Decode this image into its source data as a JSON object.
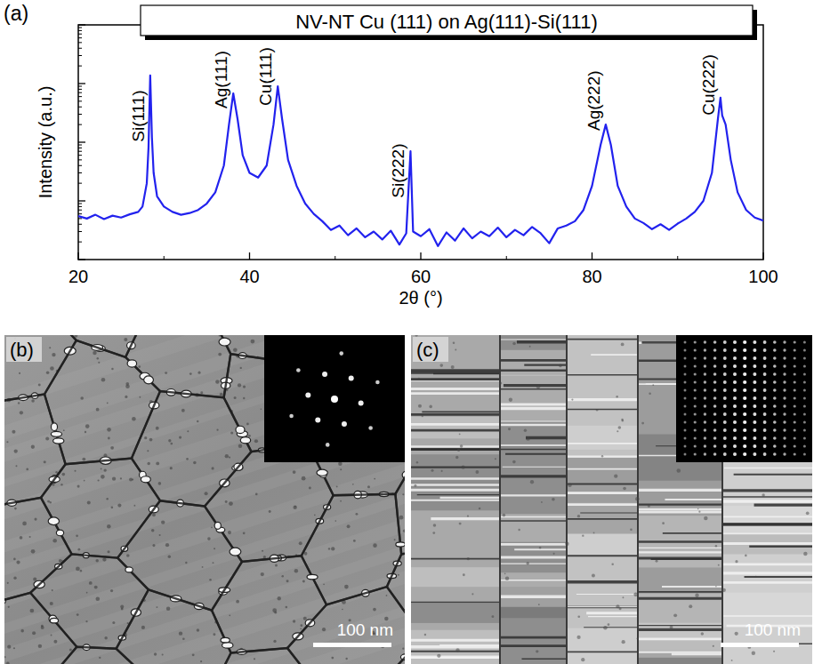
{
  "chart_data": {
    "type": "line",
    "panel_label": "(a)",
    "title": "NV-NT Cu (111) on Ag(111)-Si(111)",
    "x_label": "2θ (°)",
    "y_label": "Intensity (a.u.)",
    "log": "y",
    "xlim": [
      20,
      100
    ],
    "xticks": [
      20,
      40,
      60,
      80,
      100
    ],
    "ylim": [
      1,
      10000
    ],
    "yticks": [
      1,
      10,
      100,
      1000,
      10000
    ],
    "tick_labels": "x",
    "color": "#2222ee",
    "x": [
      20,
      21,
      22,
      23,
      24,
      25,
      26,
      27,
      27.5,
      28,
      28.2,
      28.4,
      28.6,
      28.8,
      29.2,
      30,
      31,
      32,
      33,
      34,
      35,
      36,
      37,
      37.6,
      38.1,
      38.6,
      39.2,
      40,
      41,
      42,
      42.8,
      43.3,
      43.8,
      44.5,
      45.5,
      46.5,
      47.5,
      48.5,
      49.5,
      50.5,
      51.5,
      52.5,
      53.5,
      54.5,
      55.5,
      56.5,
      57.5,
      58.3,
      58.8,
      59.1,
      60,
      61,
      62,
      63,
      64,
      65,
      66,
      67,
      68,
      69,
      70,
      71,
      72,
      73,
      74,
      75,
      76,
      77,
      78,
      79,
      80,
      81,
      81.6,
      82.2,
      83,
      84,
      85,
      86,
      87,
      88,
      89,
      90,
      91,
      92,
      93,
      94,
      94.7,
      95,
      95.2,
      95.6,
      96.2,
      97,
      98,
      99,
      100
    ],
    "values": [
      5.5,
      5.0,
      5.8,
      4.9,
      5.6,
      5.2,
      5.9,
      6.5,
      8,
      20,
      80,
      1380,
      120,
      30,
      12,
      8,
      6.5,
      5.8,
      6.2,
      7,
      9,
      14,
      40,
      200,
      680,
      250,
      60,
      30,
      25,
      40,
      200,
      900,
      250,
      50,
      18,
      9,
      6,
      4.5,
      3.2,
      3.8,
      2.6,
      3.4,
      2.4,
      3.0,
      2.2,
      3.1,
      1.8,
      2.8,
      70,
      3,
      2.5,
      3.3,
      1.7,
      2.9,
      2.1,
      3.4,
      2.3,
      3.0,
      2.5,
      3.5,
      2.4,
      3.2,
      2.6,
      3.6,
      2.8,
      1.9,
      3.4,
      3.8,
      4.5,
      7,
      18,
      90,
      200,
      90,
      18,
      8,
      5,
      4.2,
      3.3,
      4,
      3.2,
      4.1,
      5,
      6.5,
      10,
      30,
      250,
      575,
      285,
      200,
      50,
      14,
      7,
      5.2,
      4.6
    ],
    "annotations": [
      {
        "text": "Si(111)",
        "x": 28.4
      },
      {
        "text": "Ag(111)",
        "x": 38.1
      },
      {
        "text": "Cu(111)",
        "x": 43.3
      },
      {
        "text": "Si(222)",
        "x": 58.8
      },
      {
        "text": "Ag(222)",
        "x": 81.6
      },
      {
        "text": "Cu(222)",
        "x": 95
      }
    ]
  },
  "images": [
    {
      "label": "(b)",
      "scale_bar": "100 nm"
    },
    {
      "label": "(c)",
      "scale_bar": "100 nm"
    }
  ]
}
